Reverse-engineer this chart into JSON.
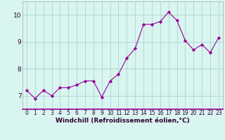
{
  "x": [
    0,
    1,
    2,
    3,
    4,
    5,
    6,
    7,
    8,
    9,
    10,
    11,
    12,
    13,
    14,
    15,
    16,
    17,
    18,
    19,
    20,
    21,
    22,
    23
  ],
  "y": [
    7.2,
    6.9,
    7.2,
    7.0,
    7.3,
    7.3,
    7.4,
    7.55,
    7.55,
    6.95,
    7.55,
    7.8,
    8.4,
    8.75,
    9.65,
    9.65,
    9.75,
    10.1,
    9.8,
    9.05,
    8.7,
    8.9,
    8.6,
    9.15
  ],
  "line_color": "#990099",
  "marker": "D",
  "marker_size": 2.2,
  "bg_color": "#d8f5f0",
  "grid_color": "#aacccc",
  "xlabel": "Windchill (Refroidissement éolien,°C)",
  "ylim": [
    6.5,
    10.5
  ],
  "yticks": [
    7,
    8,
    9,
    10
  ],
  "xticks": [
    0,
    1,
    2,
    3,
    4,
    5,
    6,
    7,
    8,
    9,
    10,
    11,
    12,
    13,
    14,
    15,
    16,
    17,
    18,
    19,
    20,
    21,
    22,
    23
  ],
  "tick_fontsize": 5.5,
  "xlabel_fontsize": 6.5,
  "ytick_fontsize": 6.5,
  "axis_color": "#990099",
  "spine_color": "#aaaaaa"
}
